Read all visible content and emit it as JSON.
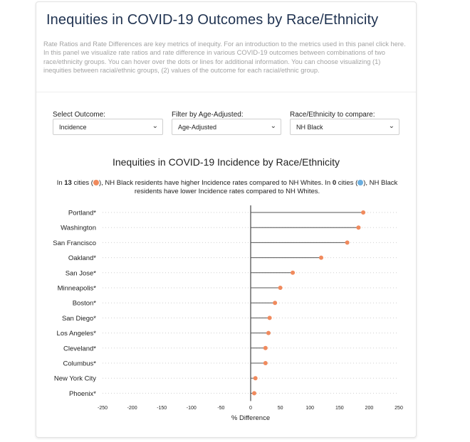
{
  "panel": {
    "title": "Inequities in COVID-19 Outcomes by Race/Ethnicity",
    "description": "Rate Ratios and Rate Differences are key metrics of inequity. For an introduction to the metrics used in this panel click here. In this panel we visualize rate ratios and rate difference in various COVID-19 outcomes between combinations of two race/ethnicity groups. You can hover over the dots or lines for additional information. You can choose visualizing (1) inequities between racial/ethnic groups, (2) values of the outcome for each racial/ethnic group."
  },
  "controls": {
    "outcome": {
      "label": "Select Outcome:",
      "value": "Incidence"
    },
    "age": {
      "label": "Filter by Age-Adjusted:",
      "value": "Age-Adjusted"
    },
    "race": {
      "label": "Race/Ethnicity to compare:",
      "value": "NH Black"
    }
  },
  "summary": {
    "part1": "In ",
    "higher_count": "13",
    "part2": " cities (",
    "part3": "), NH Black residents have higher Incidence rates compared to NH Whites. In ",
    "lower_count": "0",
    "part4": " cities (",
    "part5": "), NH Black residents have lower Incidence rates compared to NH Whites."
  },
  "colors": {
    "higher": "#f08a5d",
    "lower": "#6aaee0",
    "title": "#1f3250"
  },
  "chart_data": {
    "type": "lollipop",
    "title": "Inequities in COVID-19 Incidence by Race/Ethnicity",
    "xlabel": "% Difference",
    "xlim": [
      -250,
      250
    ],
    "xticks": [
      -250,
      -200,
      -150,
      -100,
      -50,
      0,
      50,
      100,
      150,
      200,
      250
    ],
    "baseline": 0,
    "grid": "horizontal dotted",
    "categories": [
      "Portland*",
      "Washington",
      "San Francisco",
      "Oakland*",
      "San Jose*",
      "Minneapolis*",
      "Boston*",
      "San Diego*",
      "Los Angeles*",
      "Cleveland*",
      "Columbus*",
      "New York City",
      "Phoenix*"
    ],
    "values": [
      190,
      182,
      163,
      119,
      71,
      50,
      41,
      32,
      30,
      25,
      25,
      8,
      6
    ]
  }
}
